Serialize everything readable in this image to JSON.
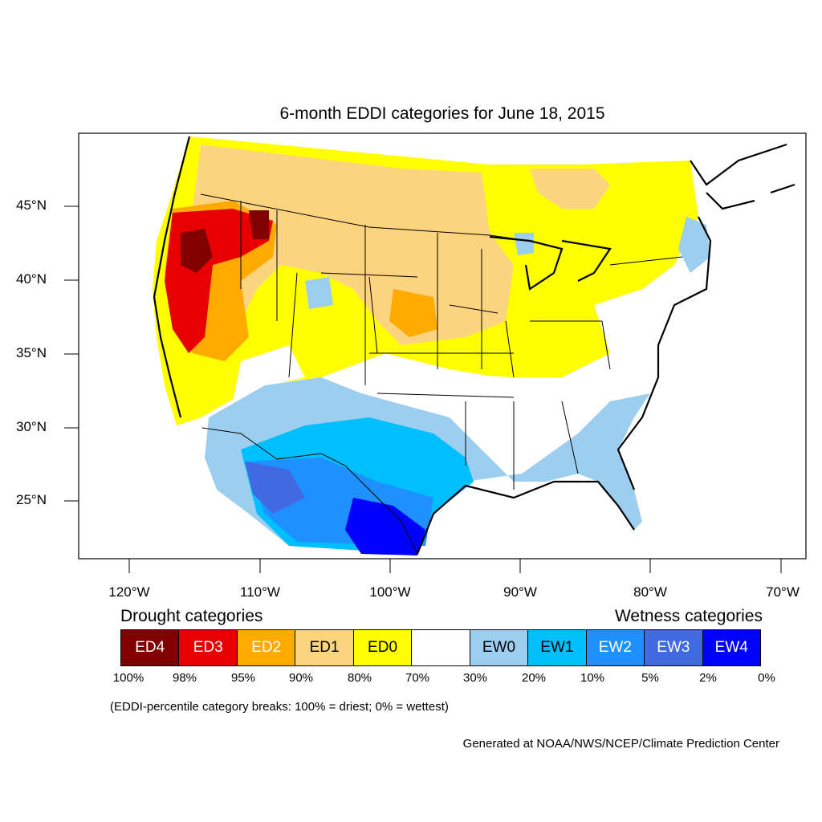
{
  "title": "6-month EDDI categories for June 18, 2015",
  "lat_labels": [
    "45°N",
    "40°N",
    "35°N",
    "30°N",
    "25°N"
  ],
  "lon_labels": [
    "120°W",
    "110°W",
    "100°W",
    "90°W",
    "80°W",
    "70°W"
  ],
  "legend": {
    "drought_heading": "Drought categories",
    "wetness_heading": "Wetness categories",
    "categories": [
      {
        "label": "ED4",
        "color": "#800000",
        "text_color": "#ffffff"
      },
      {
        "label": "ED3",
        "color": "#e60000",
        "text_color": "#ffffff"
      },
      {
        "label": "ED2",
        "color": "#ffaa00",
        "text_color": "#ffffff"
      },
      {
        "label": "ED1",
        "color": "#fcd37f",
        "text_color": "#000000"
      },
      {
        "label": "ED0",
        "color": "#ffff00",
        "text_color": "#000000"
      },
      {
        "label": "",
        "color": "#ffffff",
        "text_color": "#000000"
      },
      {
        "label": "EW0",
        "color": "#9ccef0",
        "text_color": "#000000"
      },
      {
        "label": "EW1",
        "color": "#00bfff",
        "text_color": "#000000"
      },
      {
        "label": "EW2",
        "color": "#1e90ff",
        "text_color": "#ffffff"
      },
      {
        "label": "EW3",
        "color": "#4169e1",
        "text_color": "#ffffff"
      },
      {
        "label": "EW4",
        "color": "#0000ff",
        "text_color": "#ffffff"
      }
    ],
    "percent_breaks": [
      "100%",
      "98%",
      "95%",
      "90%",
      "80%",
      "70%",
      "30%",
      "20%",
      "10%",
      "5%",
      "2%",
      "0%"
    ]
  },
  "breaks_note": "(EDDI-percentile category breaks: 100% = driest; 0% = wettest)",
  "credit": "Generated at NOAA/NWS/NCEP/Climate Prediction Center"
}
